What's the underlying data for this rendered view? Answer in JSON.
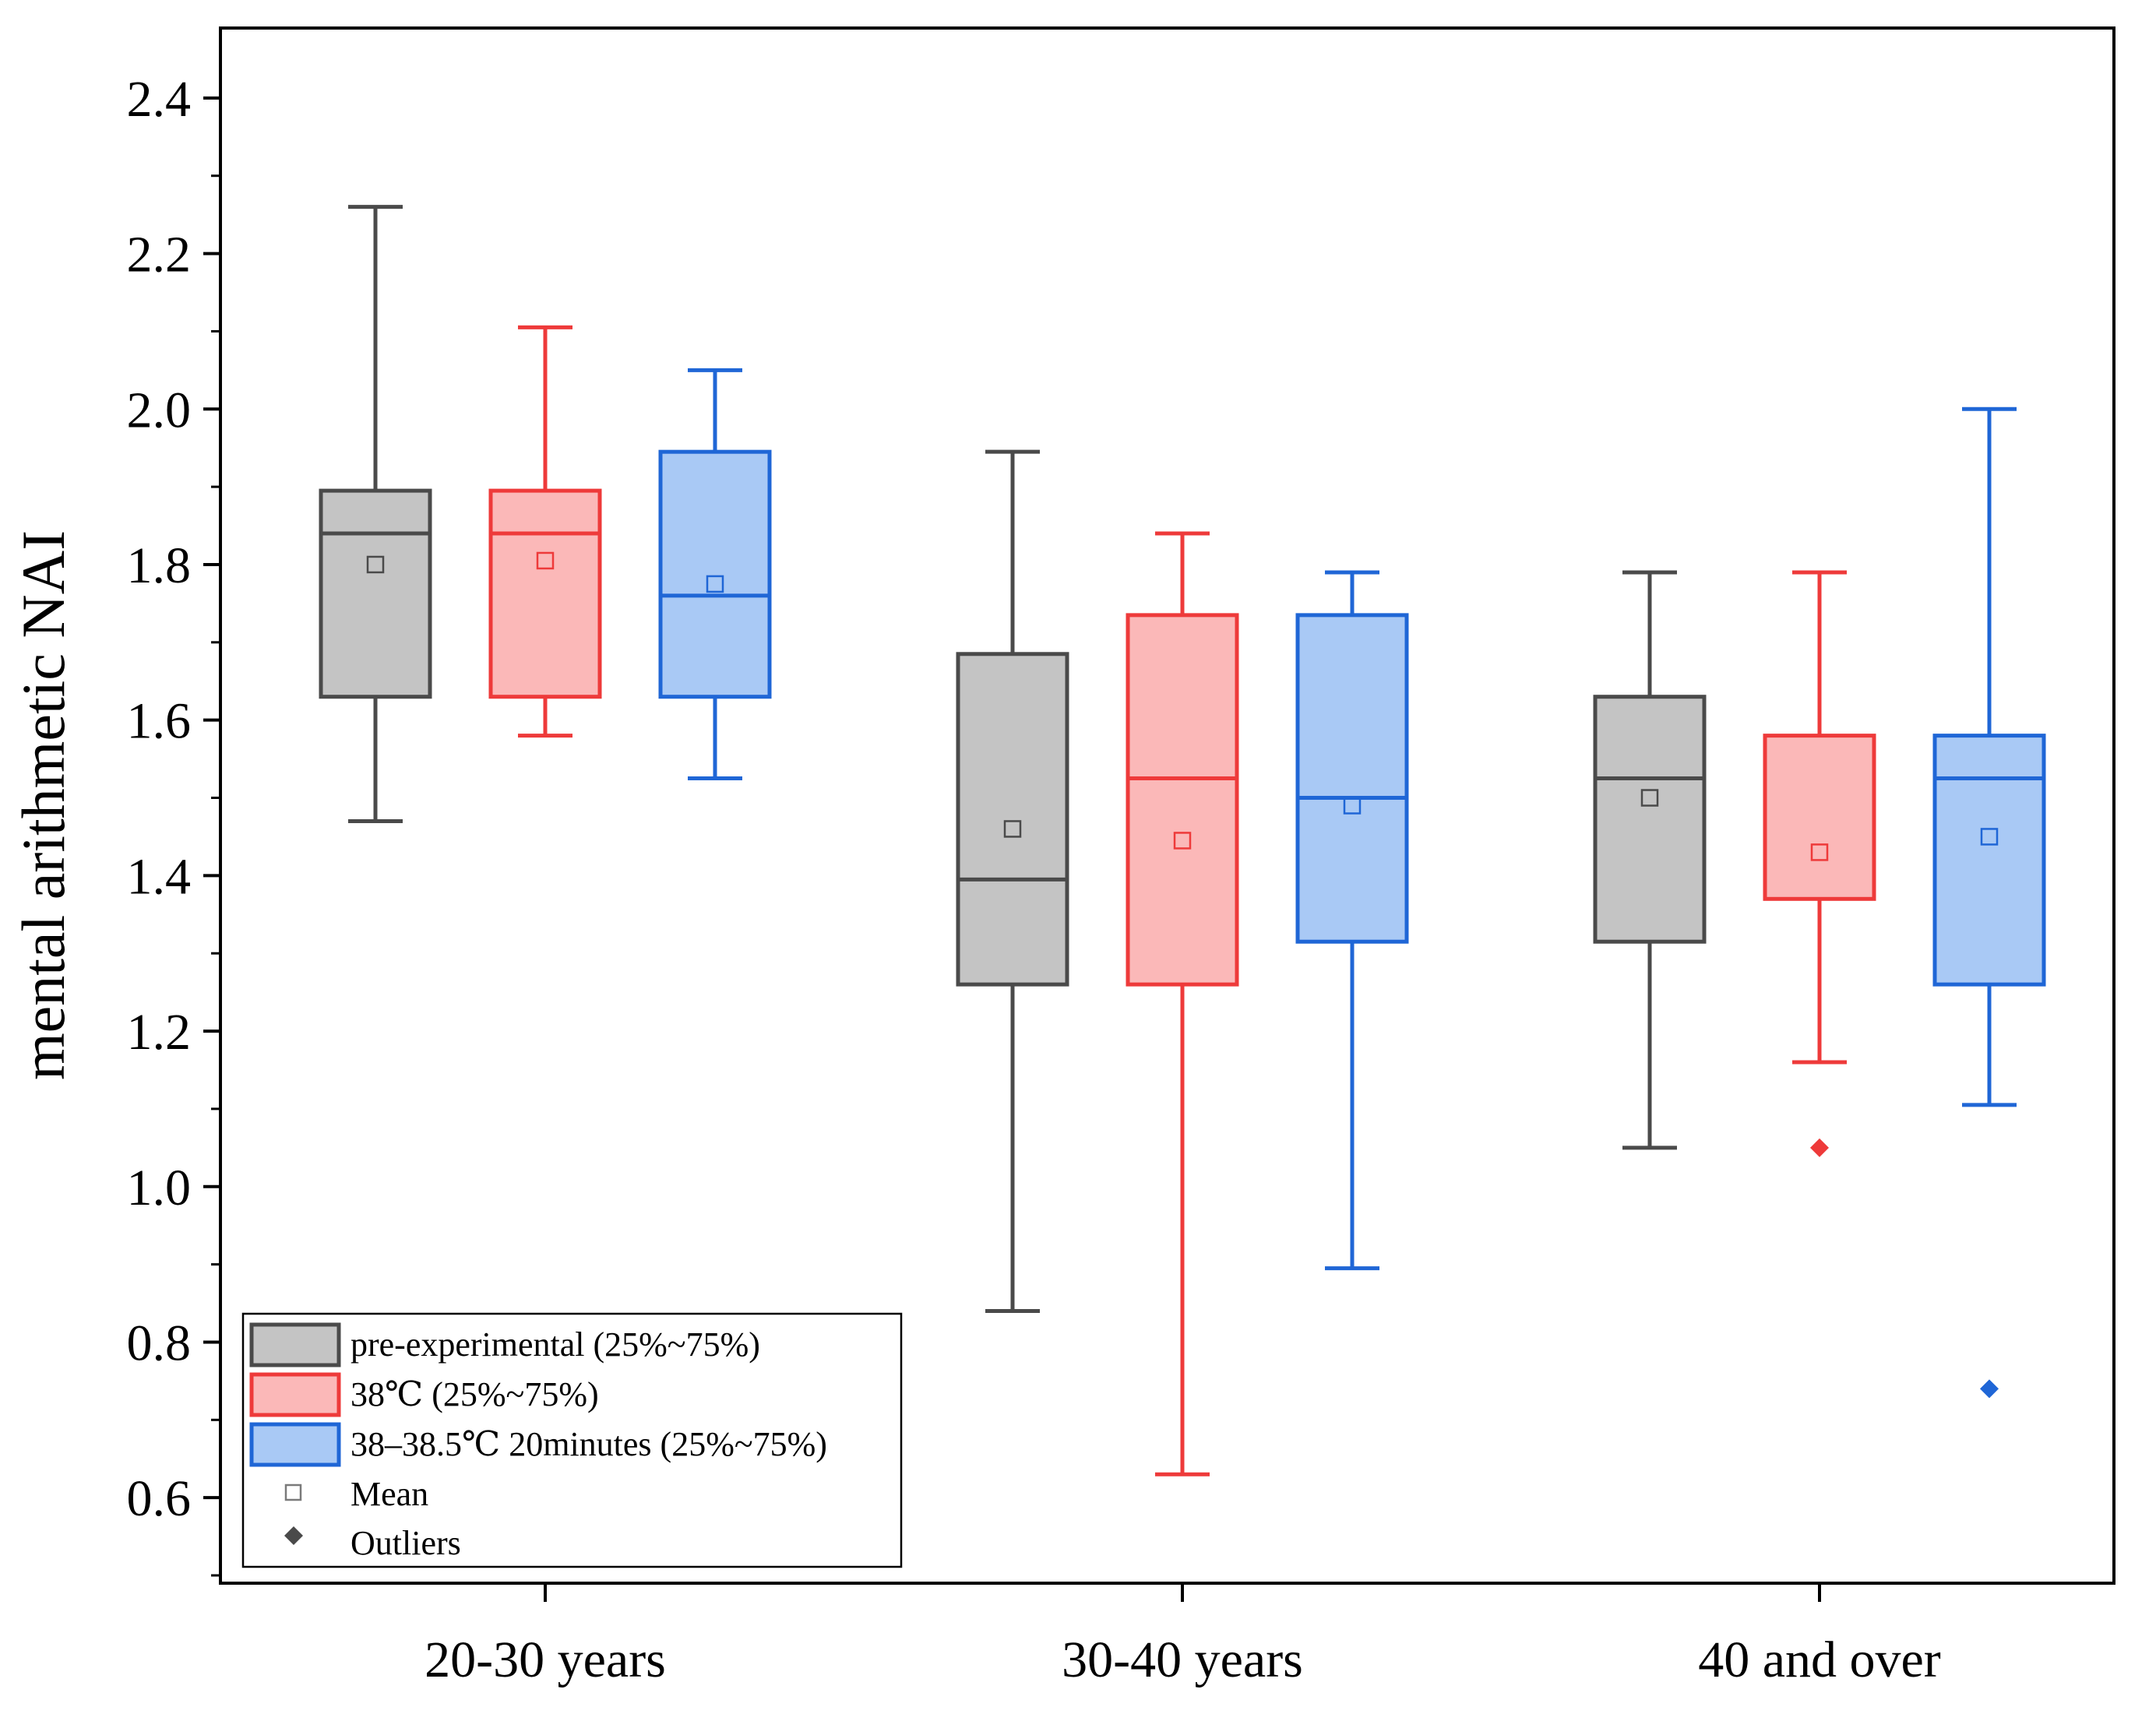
{
  "chart_data": {
    "type": "box",
    "ylabel": "mental arithmetic NAI",
    "xlabel": "",
    "ylim": [
      0.49,
      2.49
    ],
    "yticks": [
      0.6,
      0.8,
      1.0,
      1.2,
      1.4,
      1.6,
      1.8,
      2.0,
      2.2,
      2.4
    ],
    "ytick_labels": [
      "0.6",
      "0.8",
      "1.0",
      "1.2",
      "1.4",
      "1.6",
      "1.8",
      "2.0",
      "2.2",
      "2.4"
    ],
    "categories": [
      "20-30 years",
      "30-40 years",
      "40 and over"
    ],
    "series": [
      {
        "name": "pre-experimental (25%~75%)",
        "stroke": "#4a4a4a",
        "fill": "#c4c4c4",
        "boxes": [
          {
            "whisker_low": 1.47,
            "q1": 1.63,
            "median": 1.84,
            "q3": 1.895,
            "whisker_high": 2.26,
            "mean": 1.8,
            "outliers": []
          },
          {
            "whisker_low": 0.84,
            "q1": 1.26,
            "median": 1.395,
            "q3": 1.685,
            "whisker_high": 1.945,
            "mean": 1.46,
            "outliers": []
          },
          {
            "whisker_low": 1.05,
            "q1": 1.315,
            "median": 1.525,
            "q3": 1.63,
            "whisker_high": 1.79,
            "mean": 1.5,
            "outliers": []
          }
        ]
      },
      {
        "name": "38℃ (25%~75%)",
        "stroke": "#ee3a3a",
        "fill": "#fbb8b8",
        "boxes": [
          {
            "whisker_low": 1.58,
            "q1": 1.63,
            "median": 1.84,
            "q3": 1.895,
            "whisker_high": 2.105,
            "mean": 1.805,
            "outliers": []
          },
          {
            "whisker_low": 0.63,
            "q1": 1.26,
            "median": 1.525,
            "q3": 1.735,
            "whisker_high": 1.84,
            "mean": 1.445,
            "outliers": []
          },
          {
            "whisker_low": 1.16,
            "q1": 1.37,
            "median": null,
            "q3": 1.58,
            "whisker_high": 1.79,
            "mean": 1.43,
            "outliers": [
              1.05
            ]
          }
        ]
      },
      {
        "name": "38–38.5℃ 20minutes (25%~75%)",
        "stroke": "#1f66d6",
        "fill": "#a9c9f5",
        "boxes": [
          {
            "whisker_low": 1.525,
            "q1": 1.63,
            "median": 1.76,
            "q3": 1.945,
            "whisker_high": 2.05,
            "mean": 1.775,
            "outliers": []
          },
          {
            "whisker_low": 0.895,
            "q1": 1.315,
            "median": 1.5,
            "q3": 1.735,
            "whisker_high": 1.79,
            "mean": 1.49,
            "outliers": []
          },
          {
            "whisker_low": 1.105,
            "q1": 1.26,
            "median": 1.525,
            "q3": 1.58,
            "whisker_high": 2.0,
            "mean": 1.45,
            "outliers": [
              0.74
            ]
          }
        ]
      }
    ],
    "legend": {
      "position": "bottom-left",
      "mean_label": "Mean",
      "outliers_label": "Outliers"
    }
  }
}
